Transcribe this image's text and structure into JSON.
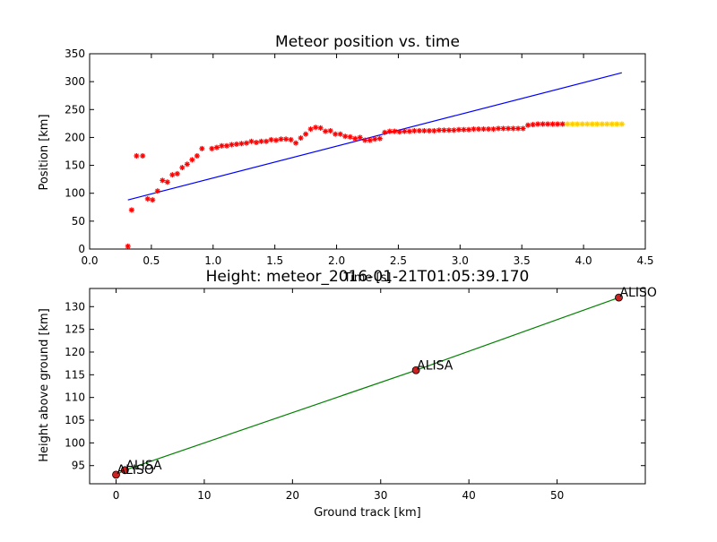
{
  "chart_data": [
    {
      "type": "scatter",
      "title": "Meteor position vs. time",
      "xlabel": "Time [s]",
      "ylabel": "Position [km]",
      "xlim": [
        0.0,
        4.5
      ],
      "ylim": [
        0,
        350
      ],
      "xticks": [
        "0.0",
        "0.5",
        "1.0",
        "1.5",
        "2.0",
        "2.5",
        "3.0",
        "3.5",
        "4.0",
        "4.5"
      ],
      "yticks": [
        "0",
        "50",
        "100",
        "150",
        "200",
        "250",
        "300",
        "350"
      ],
      "grid": false,
      "colors": {
        "points": "#ff0000",
        "extrapolated": "#ffcc00",
        "fit": "#0000ff"
      },
      "series": [
        {
          "x": [
            0.31,
            0.34,
            0.38,
            0.43,
            0.47,
            0.51,
            0.55,
            0.59,
            0.63,
            0.67,
            0.71,
            0.75,
            0.79,
            0.83,
            0.87,
            0.91,
            0.99,
            1.03,
            1.07,
            1.11,
            1.15,
            1.19,
            1.23,
            1.27,
            1.31,
            1.35,
            1.39,
            1.43,
            1.47,
            1.51,
            1.55,
            1.59,
            1.63,
            1.67,
            1.71,
            1.75,
            1.79,
            1.83,
            1.87,
            1.91,
            1.95,
            1.99,
            2.03,
            2.07,
            2.11,
            2.15,
            2.19,
            2.23,
            2.27,
            2.31,
            2.35,
            2.39,
            2.43,
            2.47,
            2.51,
            2.55,
            2.59,
            2.63,
            2.67,
            2.71,
            2.75,
            2.79,
            2.83,
            2.87,
            2.91,
            2.95,
            2.99,
            3.03,
            3.07,
            3.11,
            3.15,
            3.19,
            3.23,
            3.27,
            3.31,
            3.35,
            3.39,
            3.43,
            3.47,
            3.51,
            3.55,
            3.59,
            3.63,
            3.67,
            3.71,
            3.75,
            3.79,
            3.83
          ],
          "values": [
            5,
            70,
            167,
            167,
            90,
            88,
            104,
            123,
            120,
            133,
            135,
            146,
            152,
            160,
            167,
            180,
            180,
            182,
            185,
            185,
            187,
            188,
            189,
            190,
            193,
            191,
            193,
            193,
            196,
            195,
            197,
            197,
            196,
            190,
            199,
            206,
            215,
            218,
            217,
            211,
            212,
            206,
            206,
            202,
            201,
            198,
            200,
            195,
            195,
            197,
            198,
            209,
            211,
            211,
            210,
            211,
            211,
            212,
            212,
            212,
            212,
            212,
            213,
            213,
            213,
            213,
            214,
            214,
            214,
            215,
            215,
            215,
            215,
            215,
            216,
            216,
            216,
            216,
            216,
            216,
            222,
            223,
            224,
            224,
            224,
            224,
            224,
            224
          ]
        },
        {
          "x": [
            3.87,
            3.91,
            3.95,
            3.99,
            4.03,
            4.07,
            4.11,
            4.15,
            4.19,
            4.23,
            4.27,
            4.31
          ],
          "values": [
            224,
            224,
            224,
            224,
            224,
            224,
            224,
            224,
            224,
            224,
            224,
            224
          ]
        },
        {
          "kind": "line",
          "x": [
            0.31,
            4.31
          ],
          "values": [
            88,
            316
          ]
        }
      ]
    },
    {
      "type": "line",
      "title": "Height: meteor_2016-01-21T01:05:39.170",
      "xlabel": "Ground track [km]",
      "ylabel": "Height above ground [km]",
      "xlim": [
        -3,
        60
      ],
      "ylim": [
        91,
        134
      ],
      "xticks": [
        "0",
        "10",
        "20",
        "30",
        "40",
        "50"
      ],
      "yticks": [
        "95",
        "100",
        "105",
        "110",
        "115",
        "120",
        "125",
        "130"
      ],
      "grid": false,
      "colors": {
        "line": "#008000",
        "marker": "#cc2222"
      },
      "x": [
        0,
        1,
        34,
        57
      ],
      "values": [
        93,
        94,
        116,
        132
      ],
      "point_labels": [
        "ALISO",
        "ALISA",
        "ALISA",
        "ALISO"
      ]
    }
  ]
}
